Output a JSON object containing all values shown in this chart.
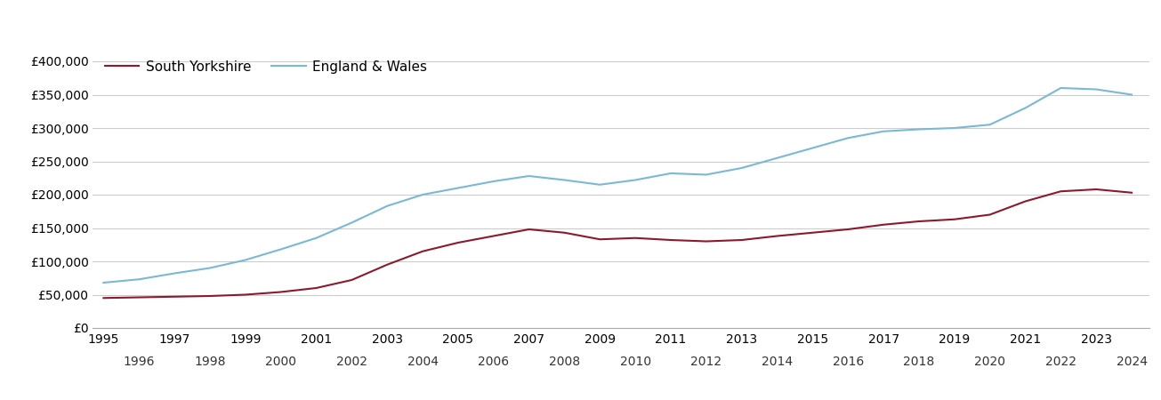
{
  "south_yorkshire": {
    "years": [
      1995,
      1996,
      1997,
      1998,
      1999,
      2000,
      2001,
      2002,
      2003,
      2004,
      2005,
      2006,
      2007,
      2008,
      2009,
      2010,
      2011,
      2012,
      2013,
      2014,
      2015,
      2016,
      2017,
      2018,
      2019,
      2020,
      2021,
      2022,
      2023,
      2024
    ],
    "values": [
      45000,
      46000,
      47000,
      48000,
      50000,
      54000,
      60000,
      72000,
      95000,
      115000,
      128000,
      138000,
      148000,
      143000,
      133000,
      135000,
      132000,
      130000,
      132000,
      138000,
      143000,
      148000,
      155000,
      160000,
      163000,
      170000,
      190000,
      205000,
      208000,
      203000
    ]
  },
  "england_wales": {
    "years": [
      1995,
      1996,
      1997,
      1998,
      1999,
      2000,
      2001,
      2002,
      2003,
      2004,
      2005,
      2006,
      2007,
      2008,
      2009,
      2010,
      2011,
      2012,
      2013,
      2014,
      2015,
      2016,
      2017,
      2018,
      2019,
      2020,
      2021,
      2022,
      2023,
      2024
    ],
    "values": [
      68000,
      73000,
      82000,
      90000,
      102000,
      118000,
      135000,
      158000,
      183000,
      200000,
      210000,
      220000,
      228000,
      222000,
      215000,
      222000,
      232000,
      230000,
      240000,
      255000,
      270000,
      285000,
      295000,
      298000,
      300000,
      305000,
      330000,
      360000,
      358000,
      350000
    ]
  },
  "south_yorkshire_color": "#8B1A2E",
  "england_wales_color": "#7BB8D4",
  "south_yorkshire_label": "South Yorkshire",
  "england_wales_label": "England & Wales",
  "ylim": [
    0,
    420000
  ],
  "yticks": [
    0,
    50000,
    100000,
    150000,
    200000,
    250000,
    300000,
    350000,
    400000
  ],
  "xlim_start": 1994.7,
  "xlim_end": 2024.5,
  "background_color": "#ffffff",
  "grid_color": "#cccccc",
  "line_width": 1.5,
  "legend_fontsize": 11,
  "tick_fontsize": 10
}
